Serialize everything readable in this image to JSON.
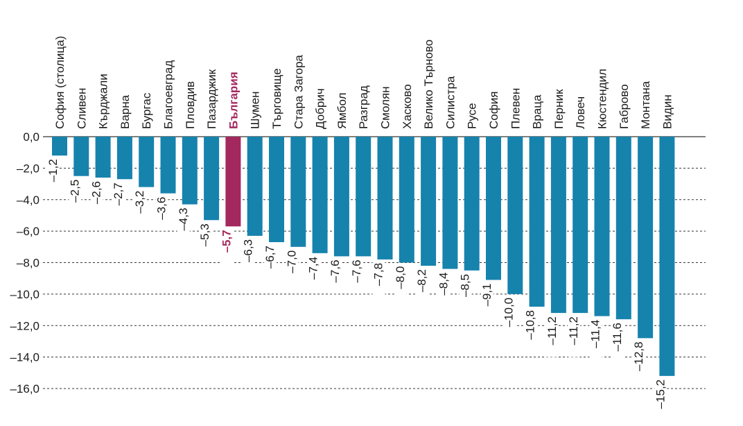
{
  "chart_data": {
    "type": "bar",
    "title": "",
    "xlabel": "",
    "ylabel": "",
    "ylim": [
      -16,
      0
    ],
    "yticks": [
      0,
      -2,
      -4,
      -6,
      -8,
      -10,
      -12,
      -14,
      -16
    ],
    "ytick_labels": [
      "0,0",
      "–2,0",
      "–4,0",
      "–6,0",
      "–8,0",
      "–10,0",
      "–12,0",
      "–14,0",
      "–16,0"
    ],
    "grid": "horizontal dashed",
    "categories": [
      "София (столица)",
      "Сливен",
      "Кърджали",
      "Варна",
      "Бургас",
      "Благоевград",
      "Пловдив",
      "Пазарджик",
      "България",
      "Шумен",
      "Търговище",
      "Стара Загора",
      "Добрич",
      "Ямбол",
      "Разград",
      "Смолян",
      "Хасково",
      "Велико Търново",
      "Силистра",
      "Русе",
      "София",
      "Плевен",
      "Враца",
      "Перник",
      "Ловеч",
      "Кюстендил",
      "Габрово",
      "Монтана",
      "Видин"
    ],
    "values": [
      -1.2,
      -2.5,
      -2.6,
      -2.7,
      -3.2,
      -3.6,
      -4.3,
      -5.3,
      -5.7,
      -6.3,
      -6.7,
      -7.0,
      -7.4,
      -7.6,
      -7.6,
      -7.8,
      -8.0,
      -8.2,
      -8.4,
      -8.5,
      -9.1,
      -10.0,
      -10.8,
      -11.2,
      -11.2,
      -11.4,
      -11.6,
      -12.8,
      -15.2
    ],
    "value_labels": [
      "–1,2",
      "–2,5",
      "–2,6",
      "–2,7",
      "–3,2",
      "–3,6",
      "–4,3",
      "–5,3",
      "–5,7",
      "–6,3",
      "–6,7",
      "–7,0",
      "–7,4",
      "–7,6",
      "–7,6",
      "–7,8",
      "–8,0",
      "–8,2",
      "–8,4",
      "–8,5",
      "–9,1",
      "–10,0",
      "–10,8",
      "–11,2",
      "–11,2",
      "–11,4",
      "–11,6",
      "–12,8",
      "–15,2"
    ],
    "highlight_index": 8,
    "colors": {
      "bar": "#1683ad",
      "highlight": "#a3285e",
      "text": "#1a1a1a",
      "grid": "#333333"
    }
  }
}
